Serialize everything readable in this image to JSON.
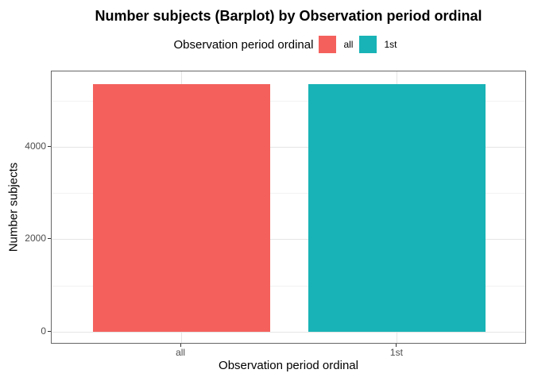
{
  "figure": {
    "title": "Number subjects (Barplot) by Observation period ordinal"
  },
  "legend": {
    "title": "Observation period ordinal",
    "entries": [
      {
        "label": "all",
        "color": "#F4615D"
      },
      {
        "label": "1st",
        "color": "#18B3B6"
      }
    ]
  },
  "axes": {
    "x_title": "Observation period ordinal",
    "y_title": "Number subjects",
    "y_major_ticks": [
      0,
      2000,
      4000
    ],
    "y_minor_ticks": [
      1000,
      3000,
      5000
    ],
    "x_tick_labels": [
      "all",
      "1st"
    ]
  },
  "chart_data": {
    "type": "bar",
    "title": "Number subjects (Barplot) by Observation period ordinal",
    "legend_title": "Observation period ordinal",
    "legend_position": "top",
    "categories": [
      "all",
      "1st"
    ],
    "values": [
      5370,
      5370
    ],
    "colors": [
      "#F4615D",
      "#18B3B6"
    ],
    "xlabel": "Observation period ordinal",
    "ylabel": "Number subjects",
    "ylim": [
      0,
      5640
    ],
    "y_major_ticks": [
      0,
      2000,
      4000
    ],
    "y_minor_ticks": [
      1000,
      3000,
      5000
    ],
    "grid": true
  }
}
